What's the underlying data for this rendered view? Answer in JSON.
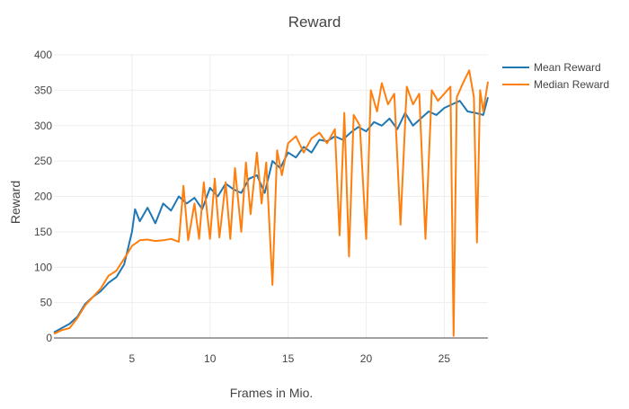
{
  "chart_data": {
    "type": "line",
    "title": "Reward",
    "xlabel": "Frames in Mio.",
    "ylabel": "Reward",
    "xlim": [
      0,
      27.8
    ],
    "ylim": [
      0,
      400
    ],
    "x_ticks": [
      5,
      10,
      15,
      20,
      25
    ],
    "y_ticks": [
      0,
      50,
      100,
      150,
      200,
      250,
      300,
      350,
      400
    ],
    "grid": true,
    "legend_position": "top-right",
    "series": [
      {
        "name": "Mean Reward",
        "color": "#1f77b4",
        "points": [
          [
            0,
            8
          ],
          [
            0.5,
            14
          ],
          [
            1.0,
            20
          ],
          [
            1.5,
            30
          ],
          [
            2.0,
            48
          ],
          [
            2.5,
            58
          ],
          [
            3.0,
            66
          ],
          [
            3.5,
            78
          ],
          [
            4.0,
            86
          ],
          [
            4.5,
            104
          ],
          [
            5.0,
            150
          ],
          [
            5.2,
            182
          ],
          [
            5.5,
            165
          ],
          [
            6.0,
            184
          ],
          [
            6.5,
            162
          ],
          [
            7.0,
            190
          ],
          [
            7.5,
            180
          ],
          [
            8.0,
            200
          ],
          [
            8.5,
            190
          ],
          [
            9.0,
            198
          ],
          [
            9.5,
            182
          ],
          [
            10.0,
            212
          ],
          [
            10.5,
            200
          ],
          [
            11.0,
            218
          ],
          [
            11.5,
            210
          ],
          [
            12.0,
            205
          ],
          [
            12.5,
            225
          ],
          [
            13.0,
            230
          ],
          [
            13.5,
            205
          ],
          [
            14.0,
            250
          ],
          [
            14.5,
            240
          ],
          [
            15.0,
            262
          ],
          [
            15.5,
            255
          ],
          [
            16.0,
            270
          ],
          [
            16.5,
            262
          ],
          [
            17.0,
            280
          ],
          [
            17.5,
            278
          ],
          [
            18.0,
            285
          ],
          [
            18.5,
            280
          ],
          [
            19.0,
            290
          ],
          [
            19.5,
            298
          ],
          [
            20.0,
            292
          ],
          [
            20.5,
            305
          ],
          [
            21.0,
            300
          ],
          [
            21.5,
            310
          ],
          [
            22.0,
            295
          ],
          [
            22.5,
            318
          ],
          [
            23.0,
            300
          ],
          [
            23.5,
            310
          ],
          [
            24.0,
            320
          ],
          [
            24.5,
            315
          ],
          [
            25.0,
            325
          ],
          [
            25.5,
            330
          ],
          [
            26.0,
            335
          ],
          [
            26.5,
            320
          ],
          [
            27.0,
            318
          ],
          [
            27.5,
            315
          ],
          [
            27.8,
            340
          ]
        ]
      },
      {
        "name": "Median Reward",
        "color": "#ff7f0e",
        "points": [
          [
            0,
            6
          ],
          [
            0.5,
            11
          ],
          [
            1.0,
            14
          ],
          [
            1.5,
            28
          ],
          [
            2.0,
            46
          ],
          [
            2.5,
            58
          ],
          [
            3.0,
            70
          ],
          [
            3.5,
            88
          ],
          [
            4.0,
            95
          ],
          [
            4.5,
            112
          ],
          [
            5.0,
            130
          ],
          [
            5.5,
            138
          ],
          [
            6.0,
            139
          ],
          [
            6.5,
            137
          ],
          [
            7.0,
            138
          ],
          [
            7.5,
            140
          ],
          [
            8.0,
            136
          ],
          [
            8.3,
            215
          ],
          [
            8.6,
            138
          ],
          [
            9.0,
            190
          ],
          [
            9.3,
            140
          ],
          [
            9.6,
            220
          ],
          [
            10.0,
            140
          ],
          [
            10.3,
            225
          ],
          [
            10.6,
            142
          ],
          [
            11.0,
            220
          ],
          [
            11.3,
            140
          ],
          [
            11.6,
            240
          ],
          [
            12.0,
            150
          ],
          [
            12.3,
            248
          ],
          [
            12.6,
            175
          ],
          [
            13.0,
            262
          ],
          [
            13.3,
            190
          ],
          [
            13.6,
            248
          ],
          [
            14.0,
            75
          ],
          [
            14.3,
            265
          ],
          [
            14.6,
            230
          ],
          [
            15.0,
            275
          ],
          [
            15.5,
            285
          ],
          [
            16.0,
            262
          ],
          [
            16.5,
            282
          ],
          [
            17.0,
            290
          ],
          [
            17.5,
            275
          ],
          [
            18.0,
            295
          ],
          [
            18.3,
            145
          ],
          [
            18.6,
            318
          ],
          [
            18.9,
            115
          ],
          [
            19.2,
            315
          ],
          [
            19.6,
            300
          ],
          [
            20.0,
            140
          ],
          [
            20.3,
            350
          ],
          [
            20.7,
            320
          ],
          [
            21.0,
            360
          ],
          [
            21.4,
            330
          ],
          [
            21.8,
            345
          ],
          [
            22.2,
            160
          ],
          [
            22.6,
            355
          ],
          [
            23.0,
            330
          ],
          [
            23.4,
            345
          ],
          [
            23.8,
            140
          ],
          [
            24.2,
            350
          ],
          [
            24.6,
            335
          ],
          [
            25.0,
            345
          ],
          [
            25.4,
            355
          ],
          [
            25.6,
            3
          ],
          [
            25.8,
            340
          ],
          [
            26.2,
            360
          ],
          [
            26.6,
            378
          ],
          [
            26.9,
            340
          ],
          [
            27.1,
            135
          ],
          [
            27.3,
            350
          ],
          [
            27.5,
            320
          ],
          [
            27.8,
            362
          ]
        ]
      }
    ]
  }
}
